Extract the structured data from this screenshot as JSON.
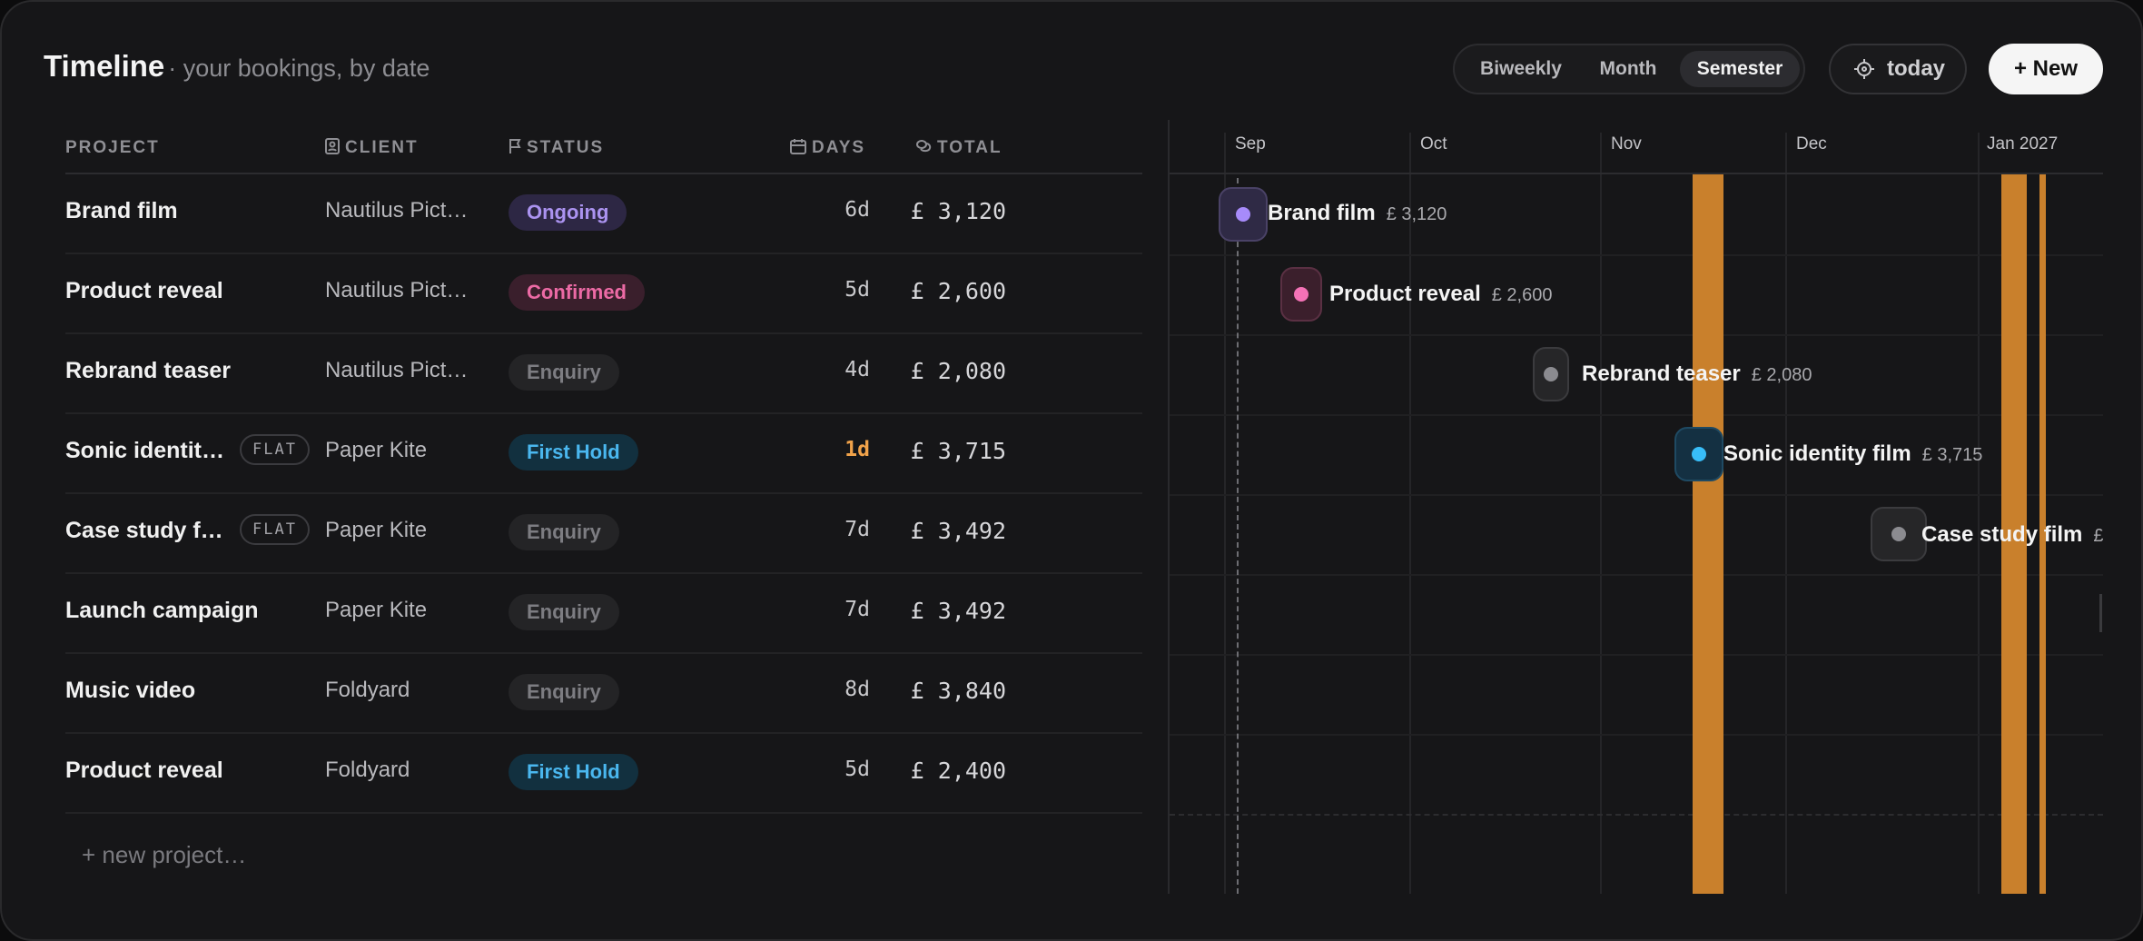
{
  "header": {
    "title": "Timeline",
    "subtitle": "· your bookings, by date",
    "views": [
      "Biweekly",
      "Month",
      "Semester"
    ],
    "active_view": "Semester",
    "today_label": "today",
    "new_label": "+ New"
  },
  "table": {
    "columns": [
      "PROJECT",
      "CLIENT",
      "STATUS",
      "DAYS",
      "TOTAL"
    ],
    "rows": [
      {
        "project": "Brand film",
        "flag": "",
        "client": "Nautilus Pict…",
        "status": "Ongoing",
        "days": "6d",
        "total": "£ 3,120"
      },
      {
        "project": "Product reveal",
        "flag": "",
        "client": "Nautilus Pict…",
        "status": "Confirmed",
        "days": "5d",
        "total": "£ 2,600"
      },
      {
        "project": "Rebrand teaser",
        "flag": "",
        "client": "Nautilus Pict…",
        "status": "Enquiry",
        "days": "4d",
        "total": "£ 2,080"
      },
      {
        "project": "Sonic identit…",
        "flag": "FLAT",
        "client": "Paper Kite",
        "status": "First Hold",
        "days": "1d",
        "total": "£ 3,715"
      },
      {
        "project": "Case study f…",
        "flag": "FLAT",
        "client": "Paper Kite",
        "status": "Enquiry",
        "days": "7d",
        "total": "£ 3,492"
      },
      {
        "project": "Launch campaign",
        "flag": "",
        "client": "Paper Kite",
        "status": "Enquiry",
        "days": "7d",
        "total": "£ 3,492"
      },
      {
        "project": "Music video",
        "flag": "",
        "client": "Foldyard",
        "status": "Enquiry",
        "days": "8d",
        "total": "£ 3,840"
      },
      {
        "project": "Product reveal",
        "flag": "",
        "client": "Foldyard",
        "status": "First Hold",
        "days": "5d",
        "total": "£ 2,400"
      }
    ],
    "new_project_label": "+  new project…"
  },
  "timeline": {
    "months": [
      "Sep",
      "Oct",
      "Nov",
      "Dec",
      "Jan 2027"
    ],
    "bars": [
      {
        "name": "Brand film",
        "amount": "£ 3,120",
        "color": "#a78bfa"
      },
      {
        "name": "Product reveal",
        "amount": "£ 2,600",
        "color": "#f472b6"
      },
      {
        "name": "Rebrand teaser",
        "amount": "£ 2,080",
        "color": "#8b8b90"
      },
      {
        "name": "Sonic identity film",
        "amount": "£ 3,715",
        "color": "#38bdf8"
      },
      {
        "name": "Case study film",
        "amount": "£",
        "color": "#8b8b90"
      }
    ],
    "highlight_color": "#c9802c"
  }
}
